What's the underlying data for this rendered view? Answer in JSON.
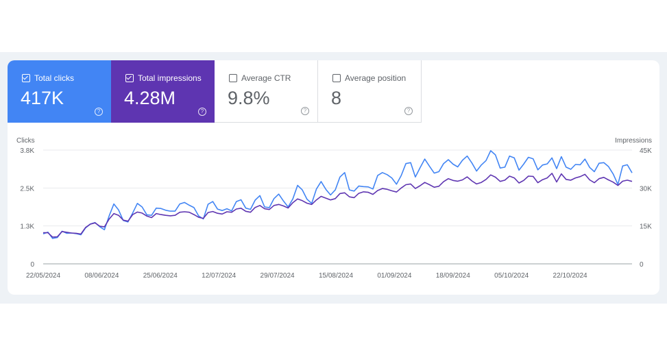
{
  "metrics": [
    {
      "label": "Total clicks",
      "value": "417K",
      "checked": true
    },
    {
      "label": "Total impressions",
      "value": "4.28M",
      "checked": true
    },
    {
      "label": "Average CTR",
      "value": "9.8%",
      "checked": false
    },
    {
      "label": "Average position",
      "value": "8",
      "checked": false
    }
  ],
  "colors": {
    "clicks": "#4285f4",
    "impressions": "#5e35b1",
    "grid": "#e8eaed",
    "axis": "#9aa0a6"
  },
  "chart_data": {
    "type": "line",
    "ylabel_left": "Clicks",
    "ylabel_right": "Impressions",
    "y_left_ticks": [
      "3.8K",
      "2.5K",
      "1.3K",
      "0"
    ],
    "y_right_ticks": [
      "45K",
      "30K",
      "15K",
      "0"
    ],
    "ylim_left": [
      0,
      3800
    ],
    "ylim_right": [
      0,
      45000
    ],
    "x_tick_labels": [
      "22/05/2024",
      "08/06/2024",
      "25/06/2024",
      "12/07/2024",
      "29/07/2024",
      "15/08/2024",
      "01/09/2024",
      "18/09/2024",
      "05/10/2024",
      "22/10/2024"
    ],
    "x_start": "2024-05-22",
    "x_end": "2024-11-09",
    "series": [
      {
        "name": "Clicks",
        "axis": "left",
        "values": [
          1000,
          1060,
          850,
          880,
          1090,
          1020,
          1030,
          1010,
          970,
          1200,
          1330,
          1380,
          1240,
          1140,
          1600,
          2000,
          1800,
          1450,
          1400,
          1700,
          2020,
          1900,
          1640,
          1620,
          1860,
          1850,
          1790,
          1760,
          1760,
          2000,
          2050,
          1960,
          1880,
          1600,
          1500,
          1990,
          2080,
          1830,
          1780,
          1840,
          1770,
          2080,
          2140,
          1860,
          1820,
          2130,
          2280,
          1900,
          1880,
          2180,
          2330,
          2100,
          1900,
          2170,
          2620,
          2470,
          2160,
          2020,
          2500,
          2750,
          2490,
          2300,
          2470,
          2900,
          3050,
          2470,
          2430,
          2600,
          2580,
          2570,
          2500,
          2950,
          3050,
          2980,
          2870,
          2660,
          2950,
          3350,
          3380,
          2900,
          3210,
          3500,
          3260,
          3030,
          3080,
          3350,
          3480,
          3330,
          3240,
          3460,
          3600,
          3370,
          3100,
          3300,
          3450,
          3780,
          3640,
          3200,
          3230,
          3600,
          3540,
          3130,
          3330,
          3560,
          3510,
          3140,
          3300,
          3340,
          3540,
          3180,
          3580,
          3230,
          3160,
          3320,
          3310,
          3500,
          3220,
          3080,
          3360,
          3380,
          3250,
          3000,
          2650,
          3270,
          3310,
          3040
        ],
        "color": "#4285f4"
      },
      {
        "name": "Impressions",
        "axis": "right",
        "values": [
          12300,
          12300,
          10600,
          10700,
          12800,
          12500,
          12200,
          12100,
          11800,
          14400,
          15700,
          16200,
          14900,
          14600,
          17700,
          19900,
          19200,
          17300,
          16900,
          19500,
          20500,
          20100,
          18900,
          18300,
          19900,
          19500,
          19200,
          19000,
          19200,
          20400,
          20600,
          20400,
          19500,
          18400,
          18000,
          20300,
          20700,
          20000,
          19700,
          20600,
          20400,
          21700,
          22000,
          20800,
          20400,
          22300,
          23100,
          21800,
          21500,
          23100,
          23500,
          22900,
          22100,
          24200,
          25700,
          25000,
          24000,
          23500,
          25300,
          26700,
          26000,
          25300,
          25800,
          27800,
          28100,
          26500,
          26200,
          27900,
          28500,
          28300,
          27500,
          29000,
          29800,
          29500,
          28900,
          28400,
          30000,
          31300,
          31600,
          29800,
          30900,
          32200,
          31300,
          30300,
          30700,
          32500,
          33700,
          33000,
          32700,
          33200,
          34400,
          32800,
          31600,
          32200,
          33400,
          35200,
          34300,
          32600,
          33100,
          34700,
          34000,
          32000,
          33000,
          34700,
          34600,
          32100,
          33300,
          34000,
          35800,
          32400,
          35600,
          33400,
          33100,
          34000,
          34500,
          35400,
          33200,
          32100,
          33700,
          34200,
          33200,
          32300,
          31000,
          32700,
          33100,
          32600
        ],
        "color": "#5e35b1"
      }
    ]
  }
}
